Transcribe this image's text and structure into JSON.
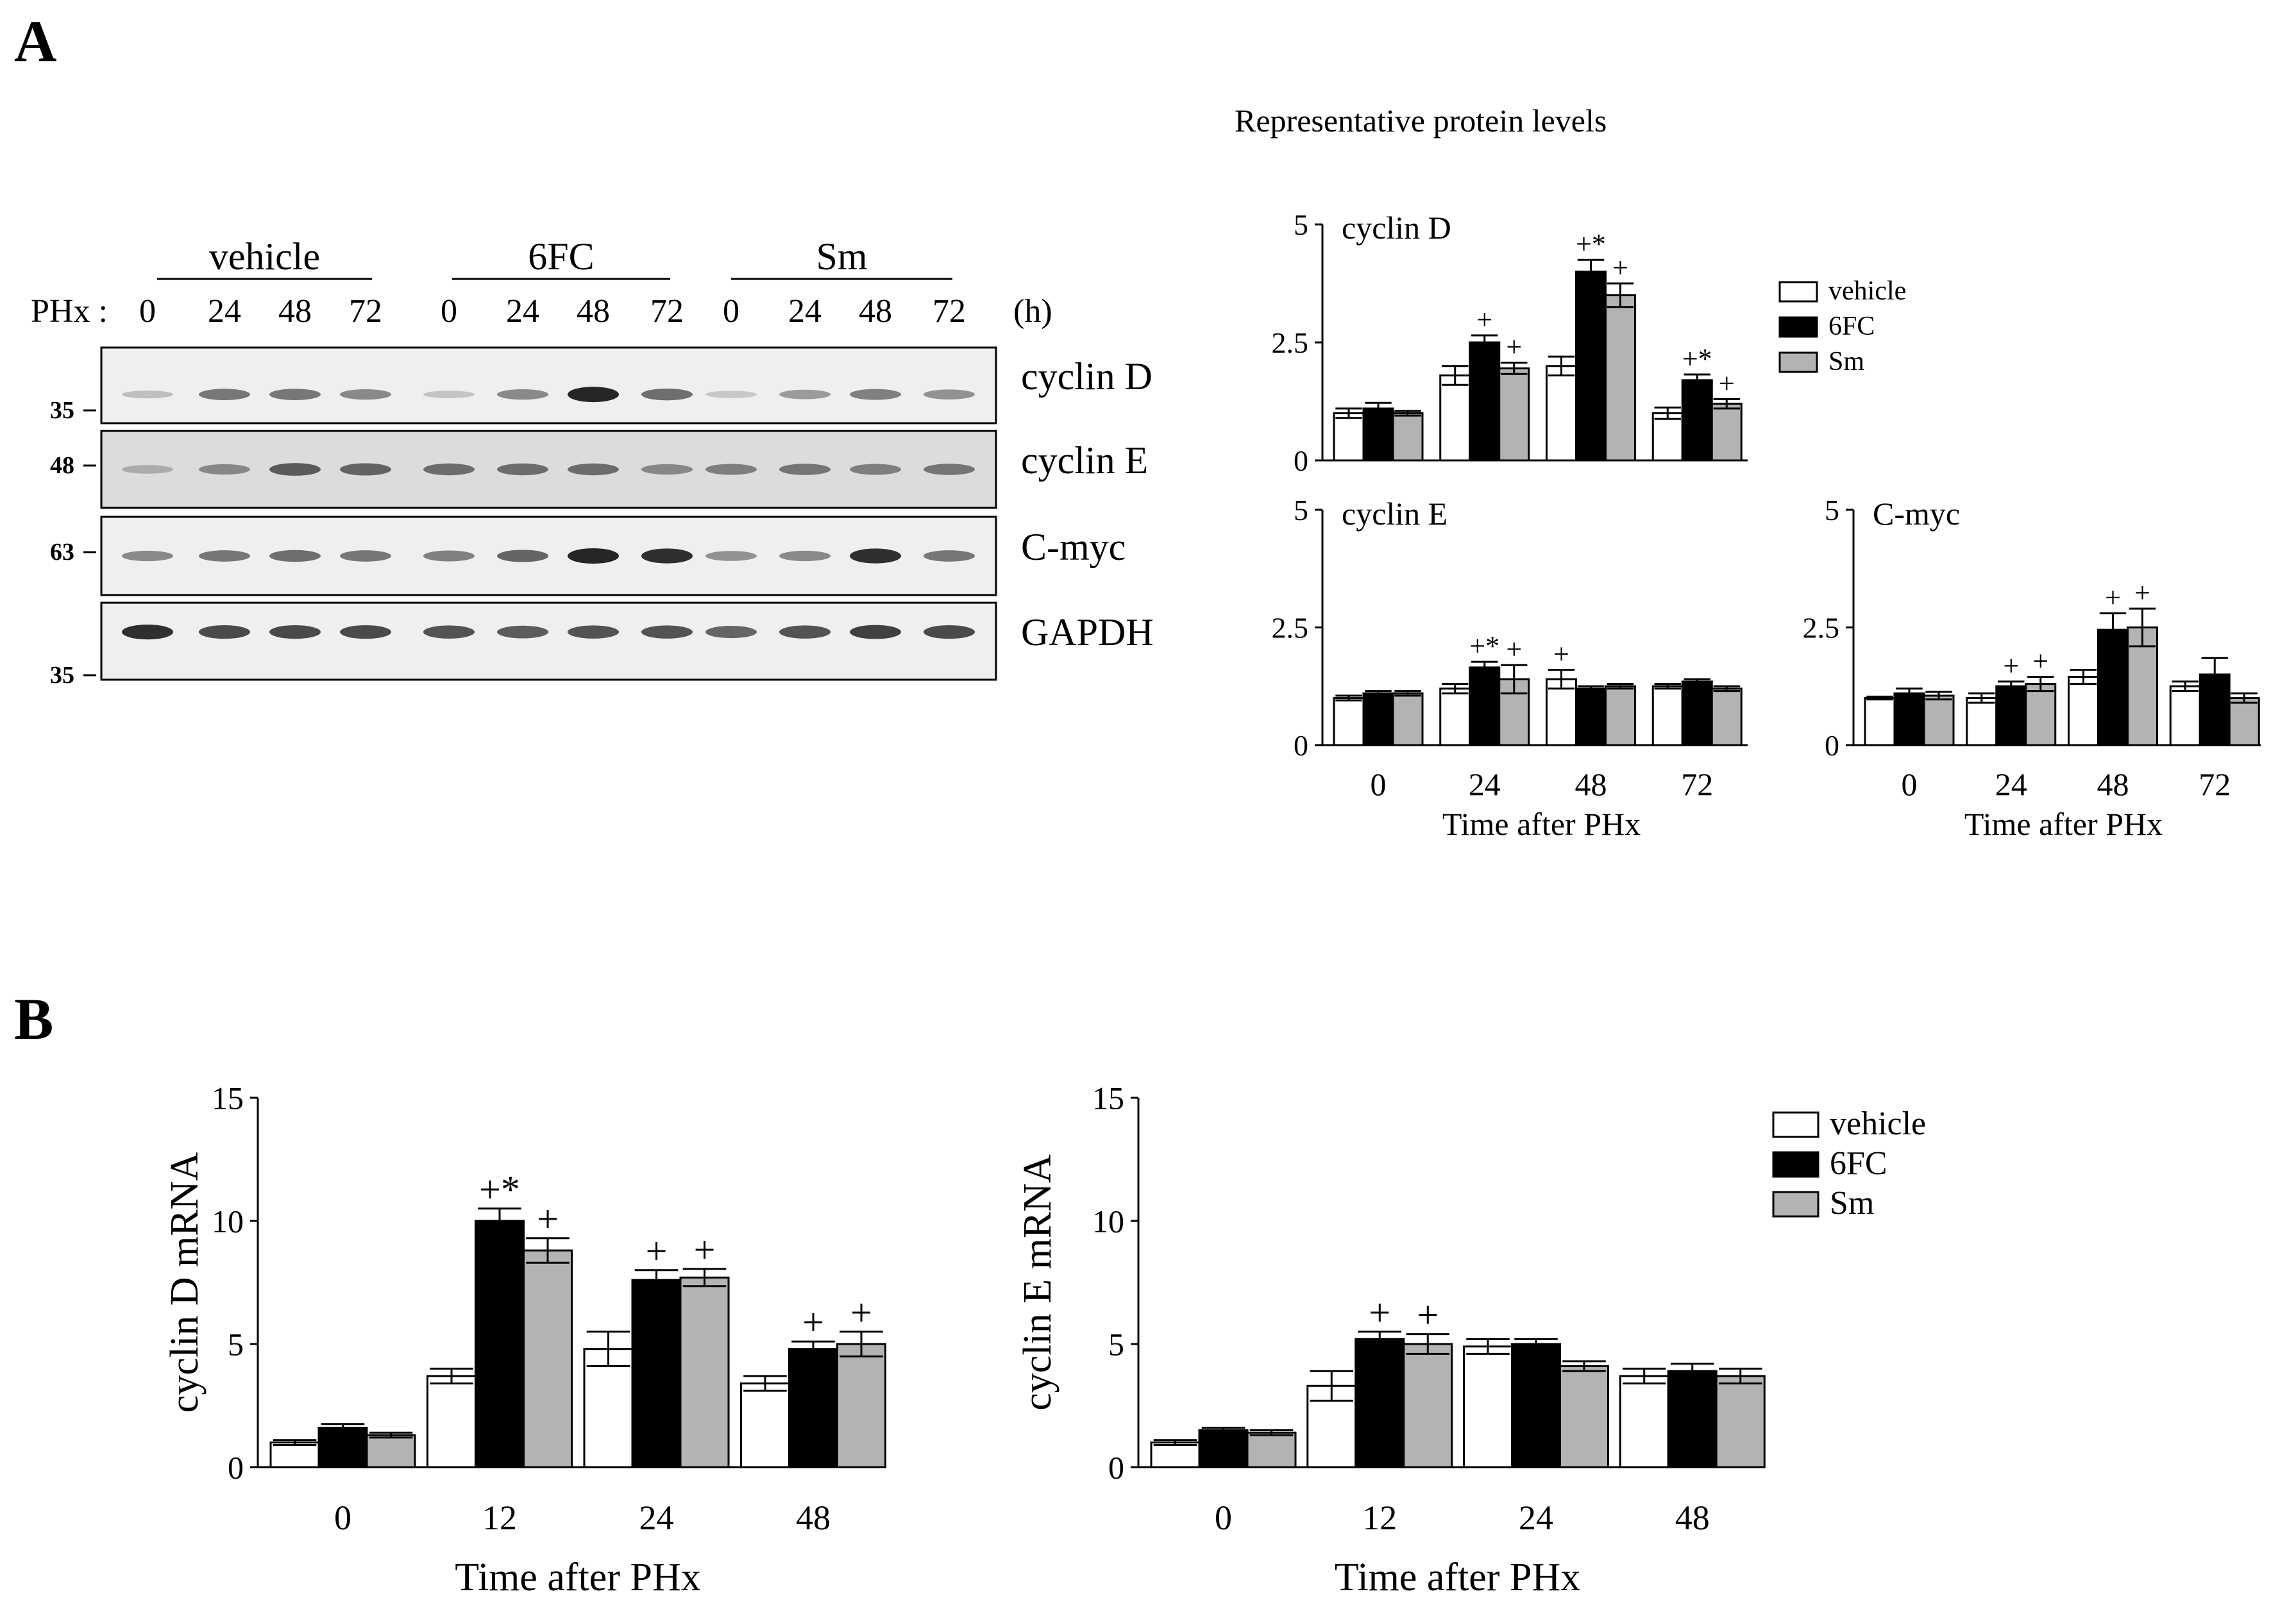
{
  "panels": {
    "A": "A",
    "B": "B"
  },
  "western_blot": {
    "groups": [
      "vehicle",
      "6FC",
      "Sm"
    ],
    "row_prefix": "PHx :",
    "lanes": [
      "0",
      "24",
      "48",
      "72",
      "0",
      "24",
      "48",
      "72",
      "0",
      "24",
      "48",
      "72"
    ],
    "unit": "(h)",
    "blots": [
      {
        "label": "cyclin D",
        "mw": "35",
        "intensity": [
          0.15,
          0.55,
          0.55,
          0.45,
          0.12,
          0.45,
          1.0,
          0.6,
          0.1,
          0.35,
          0.5,
          0.4
        ]
      },
      {
        "label": "cyclin E",
        "mw": "48",
        "intensity": [
          0.25,
          0.45,
          0.7,
          0.65,
          0.6,
          0.6,
          0.6,
          0.45,
          0.5,
          0.55,
          0.5,
          0.55
        ]
      },
      {
        "label": "C-myc",
        "mw": "63",
        "intensity": [
          0.45,
          0.55,
          0.6,
          0.55,
          0.5,
          0.65,
          1.0,
          0.95,
          0.4,
          0.45,
          0.95,
          0.55
        ]
      },
      {
        "label": "GAPDH",
        "mw": "35",
        "intensity": [
          0.95,
          0.8,
          0.8,
          0.8,
          0.75,
          0.7,
          0.75,
          0.75,
          0.65,
          0.75,
          0.85,
          0.8
        ]
      }
    ]
  },
  "colors": {
    "vehicle": "#ffffff",
    "6FC": "#000000",
    "Sm": "#b3b3b3"
  },
  "subtitle": "Representative protein levels",
  "legend_small": [
    "vehicle",
    "6FC",
    "Sm"
  ],
  "legend_large": [
    "vehicle",
    "6FC",
    "Sm"
  ],
  "chart_data": [
    {
      "type": "bar",
      "title": "cyclin D",
      "categories": [
        "0",
        "24",
        "48",
        "72"
      ],
      "ylim": [
        0,
        5
      ],
      "yticks": [
        "0",
        "2.5",
        "5"
      ],
      "xlabel": "",
      "series": [
        {
          "name": "vehicle",
          "values": [
            1.0,
            1.8,
            2.0,
            1.0
          ],
          "err": [
            0.1,
            0.2,
            0.2,
            0.12
          ]
        },
        {
          "name": "6FC",
          "values": [
            1.1,
            2.5,
            4.0,
            1.7
          ],
          "err": [
            0.12,
            0.15,
            0.25,
            0.12
          ]
        },
        {
          "name": "Sm",
          "values": [
            1.0,
            1.95,
            3.5,
            1.2
          ],
          "err": [
            0.05,
            0.12,
            0.25,
            0.1
          ]
        }
      ],
      "annotations": [
        {
          "category": "24",
          "series": "6FC",
          "text": "+"
        },
        {
          "category": "24",
          "series": "Sm",
          "text": "+"
        },
        {
          "category": "48",
          "series": "6FC",
          "text": "+*"
        },
        {
          "category": "48",
          "series": "Sm",
          "text": "+"
        },
        {
          "category": "72",
          "series": "6FC",
          "text": "+*"
        },
        {
          "category": "72",
          "series": "Sm",
          "text": "+"
        }
      ]
    },
    {
      "type": "bar",
      "title": "cyclin E",
      "categories": [
        "0",
        "24",
        "48",
        "72"
      ],
      "ylim": [
        0,
        5
      ],
      "yticks": [
        "0",
        "2.5",
        "5"
      ],
      "xlabel": "Time after PHx",
      "series": [
        {
          "name": "vehicle",
          "values": [
            1.0,
            1.2,
            1.4,
            1.25
          ],
          "err": [
            0.05,
            0.1,
            0.2,
            0.05
          ]
        },
        {
          "name": "6FC",
          "values": [
            1.1,
            1.65,
            1.2,
            1.35
          ],
          "err": [
            0.05,
            0.12,
            0.05,
            0.05
          ]
        },
        {
          "name": "Sm",
          "values": [
            1.1,
            1.4,
            1.25,
            1.2
          ],
          "err": [
            0.05,
            0.3,
            0.05,
            0.05
          ]
        }
      ],
      "annotations": [
        {
          "category": "24",
          "series": "6FC",
          "text": "+*"
        },
        {
          "category": "24",
          "series": "Sm",
          "text": "+"
        },
        {
          "category": "48",
          "series": "vehicle",
          "text": "+"
        }
      ]
    },
    {
      "type": "bar",
      "title": "C-myc",
      "categories": [
        "0",
        "24",
        "48",
        "72"
      ],
      "ylim": [
        0,
        5
      ],
      "yticks": [
        "0",
        "2.5",
        "5"
      ],
      "xlabel": "Time after PHx",
      "series": [
        {
          "name": "vehicle",
          "values": [
            1.0,
            1.0,
            1.45,
            1.25
          ],
          "err": [
            0.03,
            0.1,
            0.15,
            0.1
          ]
        },
        {
          "name": "6FC",
          "values": [
            1.1,
            1.25,
            2.45,
            1.5
          ],
          "err": [
            0.1,
            0.1,
            0.35,
            0.35
          ]
        },
        {
          "name": "Sm",
          "values": [
            1.05,
            1.3,
            2.5,
            1.0
          ],
          "err": [
            0.08,
            0.15,
            0.4,
            0.1
          ]
        }
      ],
      "annotations": [
        {
          "category": "24",
          "series": "6FC",
          "text": "+"
        },
        {
          "category": "24",
          "series": "Sm",
          "text": "+"
        },
        {
          "category": "48",
          "series": "6FC",
          "text": "+"
        },
        {
          "category": "48",
          "series": "Sm",
          "text": "+"
        }
      ]
    },
    {
      "type": "bar",
      "title": "",
      "categories": [
        "0",
        "12",
        "24",
        "48"
      ],
      "ylim": [
        0,
        15
      ],
      "yticks": [
        "0",
        "5",
        "10",
        "15"
      ],
      "xlabel": "Time after PHx",
      "ylabel": "cyclin D mRNA",
      "series": [
        {
          "name": "vehicle",
          "values": [
            1.0,
            3.7,
            4.8,
            3.4
          ],
          "err": [
            0.1,
            0.3,
            0.7,
            0.3
          ]
        },
        {
          "name": "6FC",
          "values": [
            1.6,
            10.0,
            7.6,
            4.8
          ],
          "err": [
            0.15,
            0.5,
            0.4,
            0.3
          ]
        },
        {
          "name": "Sm",
          "values": [
            1.3,
            8.8,
            7.7,
            5.0
          ],
          "err": [
            0.1,
            0.5,
            0.35,
            0.5
          ]
        }
      ],
      "annotations": [
        {
          "category": "12",
          "series": "6FC",
          "text": "+*"
        },
        {
          "category": "12",
          "series": "Sm",
          "text": "+"
        },
        {
          "category": "24",
          "series": "6FC",
          "text": "+"
        },
        {
          "category": "24",
          "series": "Sm",
          "text": "+"
        },
        {
          "category": "48",
          "series": "6FC",
          "text": "+"
        },
        {
          "category": "48",
          "series": "Sm",
          "text": "+"
        }
      ]
    },
    {
      "type": "bar",
      "title": "",
      "categories": [
        "0",
        "12",
        "24",
        "48"
      ],
      "ylim": [
        0,
        15
      ],
      "yticks": [
        "0",
        "5",
        "10",
        "15"
      ],
      "xlabel": "Time after PHx",
      "ylabel": "cyclin E mRNA",
      "series": [
        {
          "name": "vehicle",
          "values": [
            1.0,
            3.3,
            4.9,
            3.7
          ],
          "err": [
            0.1,
            0.6,
            0.3,
            0.3
          ]
        },
        {
          "name": "6FC",
          "values": [
            1.5,
            5.2,
            5.0,
            3.9
          ],
          "err": [
            0.1,
            0.3,
            0.2,
            0.3
          ]
        },
        {
          "name": "Sm",
          "values": [
            1.4,
            5.0,
            4.1,
            3.7
          ],
          "err": [
            0.1,
            0.4,
            0.2,
            0.3
          ]
        }
      ],
      "annotations": [
        {
          "category": "12",
          "series": "6FC",
          "text": "+"
        },
        {
          "category": "12",
          "series": "Sm",
          "text": "+"
        }
      ]
    }
  ]
}
